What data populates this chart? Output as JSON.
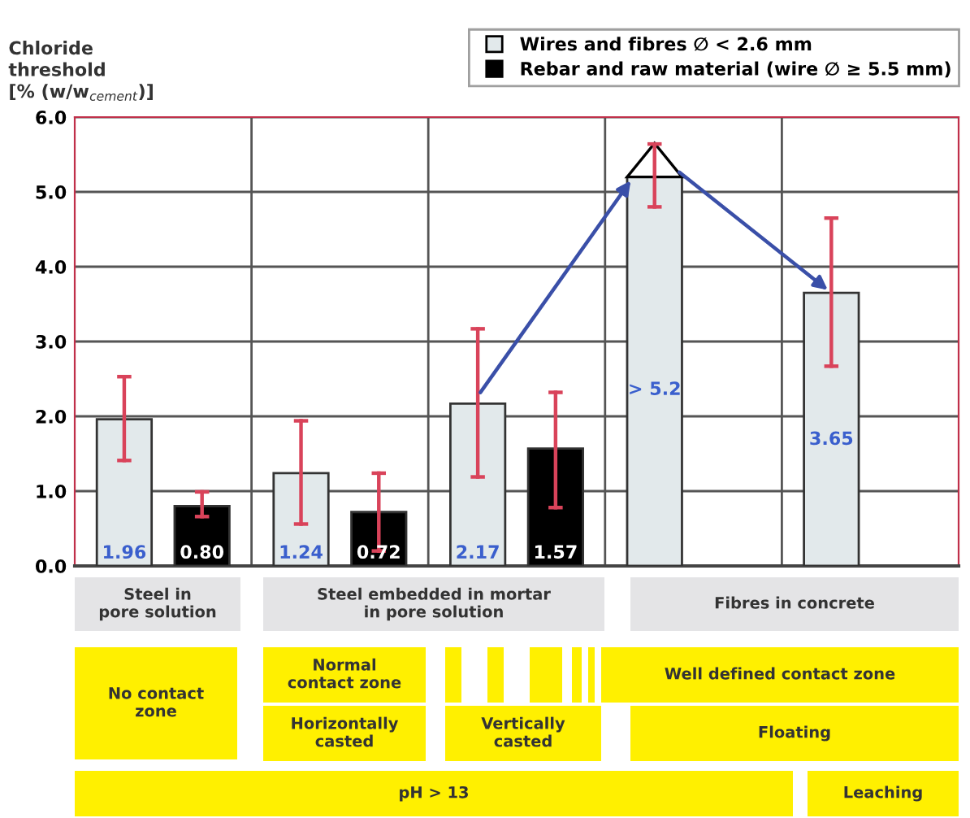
{
  "chart_data": {
    "type": "bar",
    "ylabel": "Chloride\nthreshold\n[% (w/w$_{cement}$)]",
    "categories": [
      null,
      null,
      null,
      null,
      null
    ],
    "series": [
      {
        "name": "Wires and fibres ∅ < 2.6 mm",
        "color": "#e2e9eb",
        "values": [
          1.96,
          1.24,
          2.17,
          5.2,
          3.65
        ],
        "errors": [
          [
            1.41,
            2.53
          ],
          [
            0.56,
            1.94
          ],
          [
            1.19,
            3.17
          ],
          [
            4.8,
            5.64
          ],
          [
            2.67,
            4.65
          ]
        ],
        "value_labels": [
          "1.96",
          "1.24",
          "2.17",
          "> 5.2",
          "3.65"
        ]
      },
      {
        "name": "Rebar and raw material (wire ∅ ≥ 5.5 mm)",
        "color": "#000000",
        "values": [
          0.8,
          0.72,
          1.57,
          null,
          null
        ],
        "errors": [
          [
            0.66,
            0.99
          ],
          [
            0.2,
            1.24
          ],
          [
            0.78,
            2.32
          ],
          null,
          null
        ],
        "value_labels": [
          "0.80",
          "0.72",
          "1.57",
          null,
          null
        ]
      }
    ],
    "ylim": [
      0,
      6
    ],
    "yticks": [
      {
        "value": 0,
        "label": "0.0"
      },
      {
        "value": 1,
        "label": "1.0"
      },
      {
        "value": 2,
        "label": "2.0"
      },
      {
        "value": 3,
        "label": "3.0"
      },
      {
        "value": 4,
        "label": "4.0"
      },
      {
        "value": 5,
        "label": "5.0"
      },
      {
        "value": 6,
        "label": "6.0"
      }
    ],
    "grid": true,
    "legend": "top right",
    "annotations": [
      "Steel in\npore solution",
      "Steel embedded in mortar\nin pore solution",
      "Fibres in concrete",
      "No contact\nzone",
      "Normal\ncontact zone",
      "Well defined contact zone",
      "Horizontally\ncasted",
      "Vertically\ncasted",
      "Floating",
      "pH > 13",
      "Leaching"
    ]
  }
}
